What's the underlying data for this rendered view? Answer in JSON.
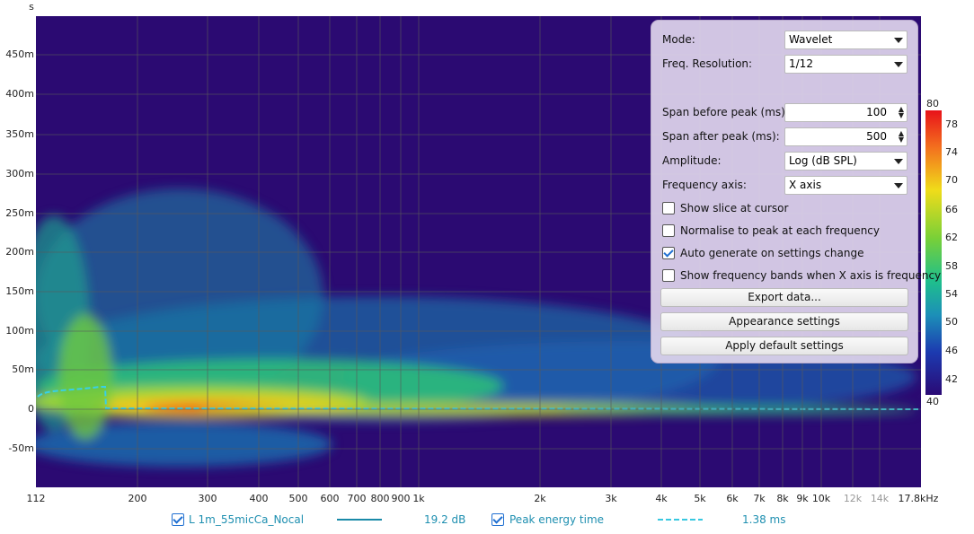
{
  "y_axis": {
    "unit": "s",
    "labels": [
      "450m",
      "400m",
      "350m",
      "300m",
      "250m",
      "200m",
      "150m",
      "100m",
      "50m",
      "0",
      "-50m"
    ]
  },
  "x_axis": {
    "labels": [
      "112",
      "200",
      "300",
      "400",
      "500",
      "600",
      "700",
      "800",
      "900",
      "1k",
      "2k",
      "3k",
      "4k",
      "5k",
      "6k",
      "7k",
      "8k",
      "9k",
      "10k",
      "12k",
      "14k",
      "17.8kHz"
    ]
  },
  "colorbar": {
    "labels": [
      80,
      78,
      74,
      70,
      66,
      62,
      58,
      54,
      50,
      46,
      42,
      40
    ]
  },
  "settings": {
    "fields": [
      {
        "label": "Mode:",
        "value": "Wavelet",
        "kind": "select"
      },
      {
        "label": "Freq. Resolution:",
        "value": "1/12",
        "kind": "select"
      },
      {
        "label": "Span before peak (ms):",
        "value": "100",
        "kind": "spin"
      },
      {
        "label": "Span after peak (ms):",
        "value": "500",
        "kind": "spin"
      },
      {
        "label": "Amplitude:",
        "value": "Log (dB SPL)",
        "kind": "select"
      },
      {
        "label": "Frequency axis:",
        "value": "X axis",
        "kind": "select"
      }
    ],
    "checkboxes": [
      {
        "label": "Show slice at cursor",
        "checked": false
      },
      {
        "label": "Normalise to peak at each frequency",
        "checked": false
      },
      {
        "label": "Auto generate on settings change",
        "checked": true
      },
      {
        "label": "Show frequency bands when X axis is frequency",
        "checked": false
      }
    ],
    "buttons": [
      "Export data...",
      "Appearance settings",
      "Apply default settings"
    ]
  },
  "legend": [
    {
      "name": "L 1m_55micCa_Nocal",
      "value": "19.2 dB",
      "checked": true
    },
    {
      "name": "Peak energy time",
      "value": "1.38 ms",
      "checked": true
    }
  ]
}
